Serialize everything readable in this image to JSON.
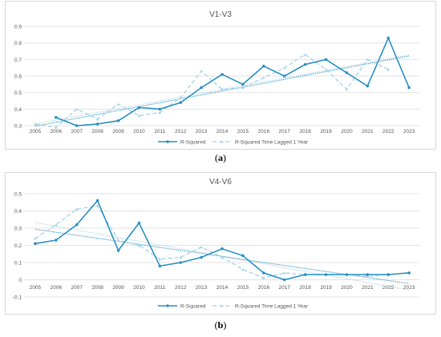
{
  "chart_data": [
    {
      "type": "line",
      "title": "V1-V3",
      "caption": "a",
      "x": [
        "2005",
        "2006",
        "2007",
        "2008",
        "2009",
        "2010",
        "2011",
        "2012",
        "2013",
        "2014",
        "2015",
        "2016",
        "2017",
        "2018",
        "2019",
        "2020",
        "2021",
        "2022",
        "2023"
      ],
      "series": [
        {
          "name": "R-Squared",
          "style": "solid",
          "color": "#2e93c6",
          "values": [
            null,
            0.35,
            0.3,
            0.31,
            0.33,
            0.41,
            0.4,
            0.44,
            0.53,
            0.61,
            0.55,
            0.66,
            0.6,
            0.67,
            0.7,
            0.62,
            0.54,
            0.83,
            0.53
          ]
        },
        {
          "name": "R-Squared Time Lagged 1 Year",
          "style": "dashed",
          "color": "#a9d3ea",
          "values": [
            0.31,
            0.29,
            0.4,
            0.34,
            0.43,
            0.36,
            0.38,
            0.47,
            0.63,
            0.52,
            0.53,
            0.59,
            0.65,
            0.73,
            0.64,
            0.52,
            0.7,
            0.64,
            null
          ]
        }
      ],
      "ylim": [
        0.3,
        0.9
      ],
      "yticks": [
        "0.3",
        "0.4",
        "0.5",
        "0.6",
        "0.7",
        "0.8",
        "0.9"
      ],
      "grid": true,
      "legend": "bottom",
      "trendlines": true
    },
    {
      "type": "line",
      "title": "V4-V6",
      "caption": "b",
      "x": [
        "2005",
        "2006",
        "2007",
        "2008",
        "2009",
        "2010",
        "2011",
        "2012",
        "2013",
        "2014",
        "2015",
        "2016",
        "2017",
        "2018",
        "2019",
        "2020",
        "2021",
        "2022",
        "2023"
      ],
      "series": [
        {
          "name": "R-Squared",
          "style": "solid",
          "color": "#2e93c6",
          "values": [
            0.21,
            0.23,
            0.32,
            0.46,
            0.17,
            0.33,
            0.08,
            0.1,
            0.13,
            0.18,
            0.14,
            0.04,
            0.0,
            0.03,
            0.03,
            0.03,
            0.03,
            0.03,
            0.04
          ]
        },
        {
          "name": "R-Squared Time Lagged 1 Year",
          "style": "dashed",
          "color": "#a9d3ea",
          "values": [
            0.24,
            0.32,
            0.41,
            0.43,
            0.23,
            0.2,
            0.12,
            0.13,
            0.19,
            0.13,
            0.06,
            0.01,
            0.04,
            0.03,
            0.03,
            0.03,
            0.02,
            0.03,
            null
          ]
        }
      ],
      "ylim": [
        -0.1,
        0.5
      ],
      "yticks": [
        "-0.1",
        "0",
        "0.1",
        "0.2",
        "0.3",
        "0.4",
        "0.5"
      ],
      "grid": true,
      "legend": "bottom",
      "trendlines": true
    }
  ]
}
